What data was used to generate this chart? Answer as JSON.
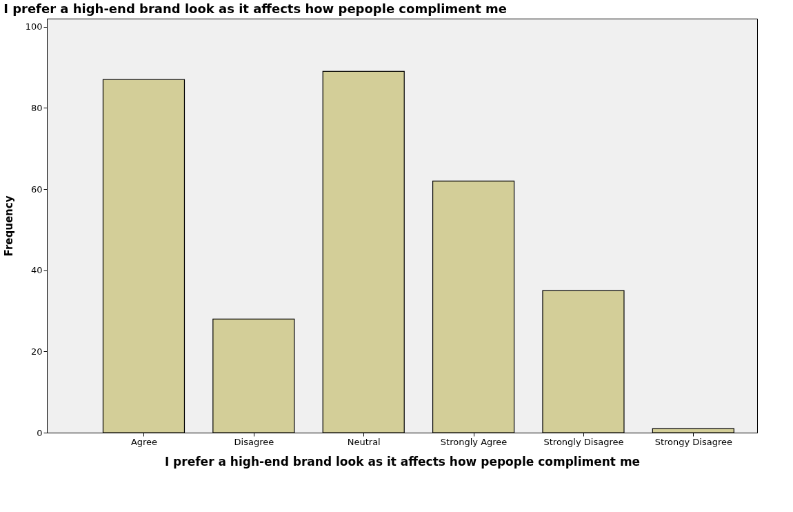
{
  "chart_data": {
    "type": "bar",
    "title": "I prefer a high-end brand look as it affects how pepople compliment me",
    "xlabel": "I prefer a high-end brand look as it affects how pepople compliment me",
    "ylabel": "Frequency",
    "categories": [
      "Agree",
      "Disagree",
      "Neutral",
      "Strongly Agree",
      "Strongly Disagree",
      "Strongy Disagree"
    ],
    "values": [
      87,
      28,
      89,
      62,
      35,
      1
    ],
    "color": "#d3ce98",
    "ylim": [
      0,
      102
    ],
    "yticks": [
      0,
      20,
      40,
      60,
      80,
      100
    ],
    "grid": false
  }
}
